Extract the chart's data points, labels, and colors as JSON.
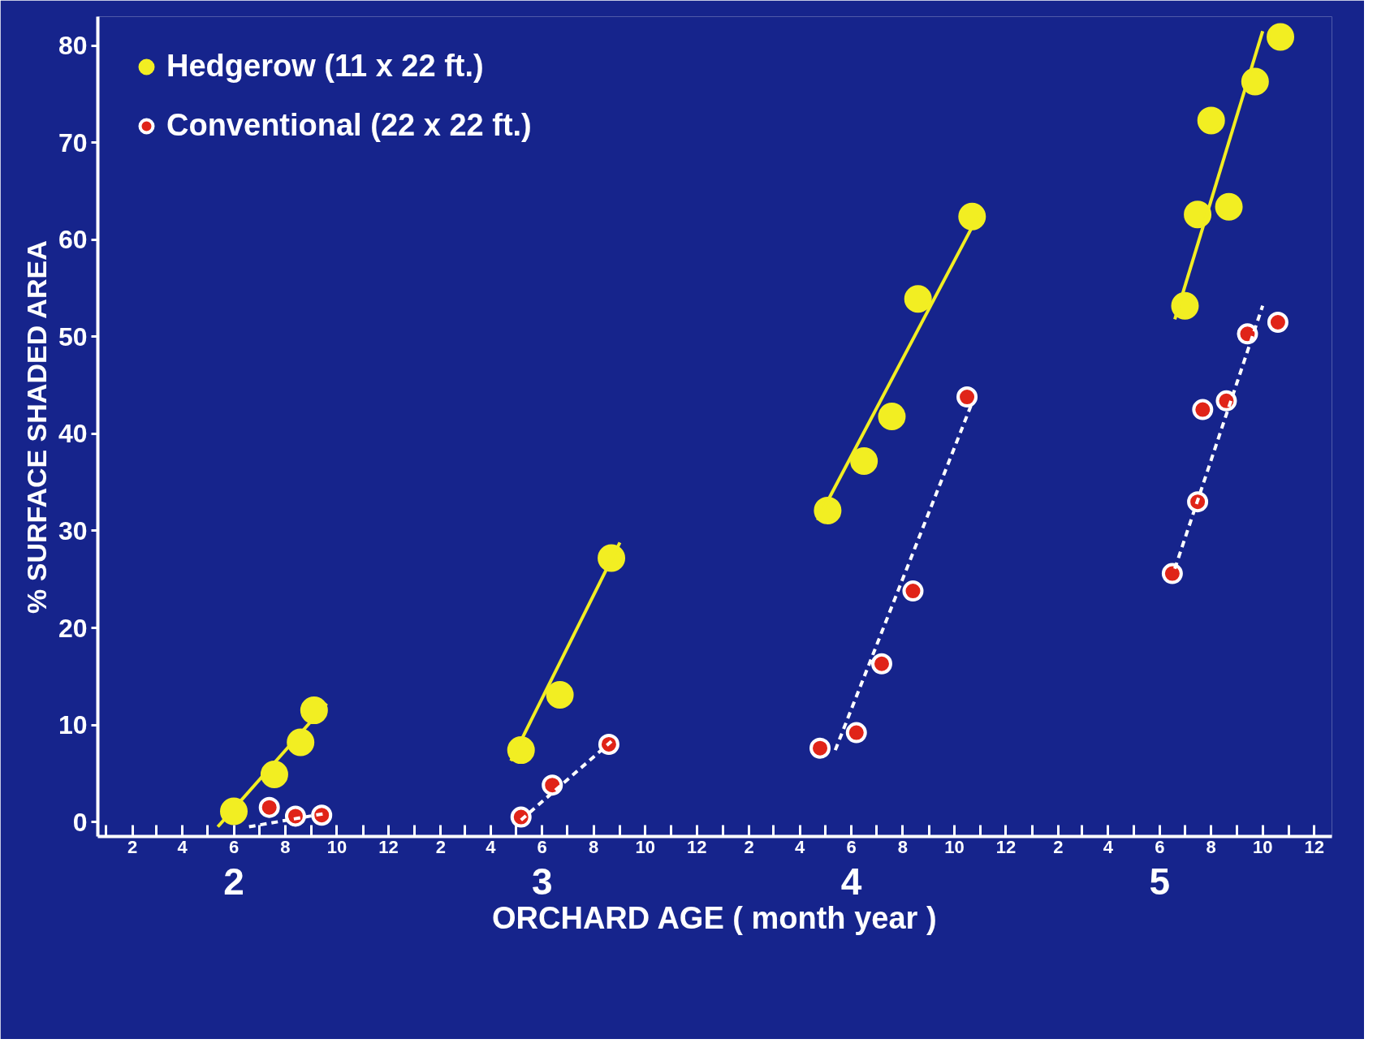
{
  "chart_data": {
    "type": "scatter",
    "xlabel": "ORCHARD AGE ( month year )",
    "ylabel": "% SURFACE SHADED AREA",
    "annotations": [
      "2",
      "3",
      "4",
      "5"
    ],
    "xlim": [
      "0001-12-22",
      "0005-12-22"
    ],
    "ylim": [
      -1.5,
      83
    ],
    "xticks": [
      {
        "value": "0002-01",
        "label": null
      },
      {
        "value": "0002-02",
        "label": "2"
      },
      {
        "value": "0002-03",
        "label": null
      },
      {
        "value": "0002-04",
        "label": "4"
      },
      {
        "value": "0002-05",
        "label": null
      },
      {
        "value": "0002-06",
        "label": "6"
      },
      {
        "value": "0002-07",
        "label": null
      },
      {
        "value": "0002-08",
        "label": "8"
      },
      {
        "value": "0002-09",
        "label": null
      },
      {
        "value": "0002-10",
        "label": "10"
      },
      {
        "value": "0002-11",
        "label": null
      },
      {
        "value": "0002-12",
        "label": "12"
      },
      {
        "value": "0003-01",
        "label": null
      },
      {
        "value": "0003-02",
        "label": "2"
      },
      {
        "value": "0003-03",
        "label": null
      },
      {
        "value": "0003-04",
        "label": "4"
      },
      {
        "value": "0003-05",
        "label": null
      },
      {
        "value": "0003-06",
        "label": "6"
      },
      {
        "value": "0003-07",
        "label": null
      },
      {
        "value": "0003-08",
        "label": "8"
      },
      {
        "value": "0003-09",
        "label": null
      },
      {
        "value": "0003-10",
        "label": "10"
      },
      {
        "value": "0003-11",
        "label": null
      },
      {
        "value": "0003-12",
        "label": "12"
      },
      {
        "value": "0004-01",
        "label": null
      },
      {
        "value": "0004-02",
        "label": "2"
      },
      {
        "value": "0004-03",
        "label": null
      },
      {
        "value": "0004-04",
        "label": "4"
      },
      {
        "value": "0004-05",
        "label": null
      },
      {
        "value": "0004-06",
        "label": "6"
      },
      {
        "value": "0004-07",
        "label": null
      },
      {
        "value": "0004-08",
        "label": "8"
      },
      {
        "value": "0004-09",
        "label": null
      },
      {
        "value": "0004-10",
        "label": "10"
      },
      {
        "value": "0004-11",
        "label": null
      },
      {
        "value": "0004-12",
        "label": "12"
      },
      {
        "value": "0005-01",
        "label": null
      },
      {
        "value": "0005-02",
        "label": "2"
      },
      {
        "value": "0005-03",
        "label": null
      },
      {
        "value": "0005-04",
        "label": "4"
      },
      {
        "value": "0005-05",
        "label": null
      },
      {
        "value": "0005-06",
        "label": "6"
      },
      {
        "value": "0005-07",
        "label": null
      },
      {
        "value": "0005-08",
        "label": "8"
      },
      {
        "value": "0005-09",
        "label": null
      },
      {
        "value": "0005-10",
        "label": "10"
      },
      {
        "value": "0005-11",
        "label": null
      },
      {
        "value": "0005-12",
        "label": "12"
      }
    ],
    "yticks": [
      0,
      10,
      20,
      30,
      40,
      50,
      60,
      70,
      80
    ],
    "grid": false,
    "legend": "top left",
    "marker": "circle",
    "series": [
      {
        "name": "Hedgerow (11 x 22 ft.)",
        "color": "#f2ee22",
        "x": [
          "0002-06-01",
          "0002-07-19",
          "0002-08-19",
          "0002-09-04",
          "0003-05-07",
          "0003-06-22",
          "0003-08-22",
          "0004-05-04",
          "0004-06-16",
          "0004-07-19",
          "0004-08-19",
          "0004-10-22",
          "0005-07-01",
          "0005-07-16",
          "0005-08-01",
          "0005-08-22",
          "0005-09-22",
          "0005-10-22"
        ],
        "values": [
          1.1,
          4.9,
          8.2,
          11.5,
          7.4,
          13.1,
          27.2,
          32.1,
          37.2,
          41.8,
          53.9,
          62.4,
          53.2,
          62.6,
          72.3,
          63.4,
          76.3,
          80.9
        ]
      },
      {
        "name": "Conventional (22 x 22 ft.)",
        "color": "#e02418",
        "x": [
          "0002-07-13",
          "0002-08-13",
          "0002-09-13",
          "0003-05-07",
          "0003-06-13",
          "0003-08-19",
          "0004-04-25",
          "0004-06-07",
          "0004-07-07",
          "0004-08-13",
          "0004-10-16",
          "0005-06-16",
          "0005-07-16",
          "0005-07-22",
          "0005-08-19",
          "0005-09-13",
          "0005-10-19"
        ],
        "values": [
          1.5,
          0.6,
          0.7,
          0.5,
          3.8,
          8.0,
          7.6,
          9.2,
          16.3,
          23.8,
          43.8,
          25.6,
          33.0,
          42.5,
          43.4,
          50.3,
          51.5
        ]
      },
      {
        "type": "line",
        "marker": "none",
        "line_style": "solid",
        "color": "#f2ee22",
        "x": [
          "0002-05-13",
          "0002-09-19"
        ],
        "values": [
          -0.5,
          12.2
        ]
      },
      {
        "type": "line",
        "marker": "none",
        "line_style": "solid",
        "color": "#f2ee22",
        "x": [
          "0003-04-25",
          "0003-09-01"
        ],
        "values": [
          6.3,
          28.8
        ]
      },
      {
        "type": "line",
        "marker": "none",
        "line_style": "solid",
        "color": "#f2ee22",
        "x": [
          "0004-04-22",
          "0004-10-28"
        ],
        "values": [
          31.1,
          62.3
        ]
      },
      {
        "type": "line",
        "marker": "none",
        "line_style": "solid",
        "color": "#f2ee22",
        "x": [
          "0005-06-19",
          "0005-10-01"
        ],
        "values": [
          51.8,
          81.5
        ]
      },
      {
        "type": "line",
        "marker": "none",
        "line_style": "dashed",
        "color": "#ffffff",
        "x": [
          "0002-06-19",
          "0002-09-19"
        ],
        "values": [
          -0.5,
          0.9
        ]
      },
      {
        "type": "line",
        "marker": "none",
        "line_style": "dashed",
        "color": "#ffffff",
        "x": [
          "0003-05-07",
          "0003-08-22"
        ],
        "values": [
          0.2,
          8.3
        ]
      },
      {
        "type": "line",
        "marker": "none",
        "line_style": "dashed",
        "color": "#ffffff",
        "x": [
          "0004-05-13",
          "0004-10-22"
        ],
        "values": [
          7.4,
          43.2
        ]
      },
      {
        "type": "line",
        "marker": "none",
        "line_style": "dashed",
        "color": "#ffffff",
        "x": [
          "0005-06-19",
          "0005-10-01"
        ],
        "values": [
          26.1,
          53.2
        ]
      }
    ]
  }
}
